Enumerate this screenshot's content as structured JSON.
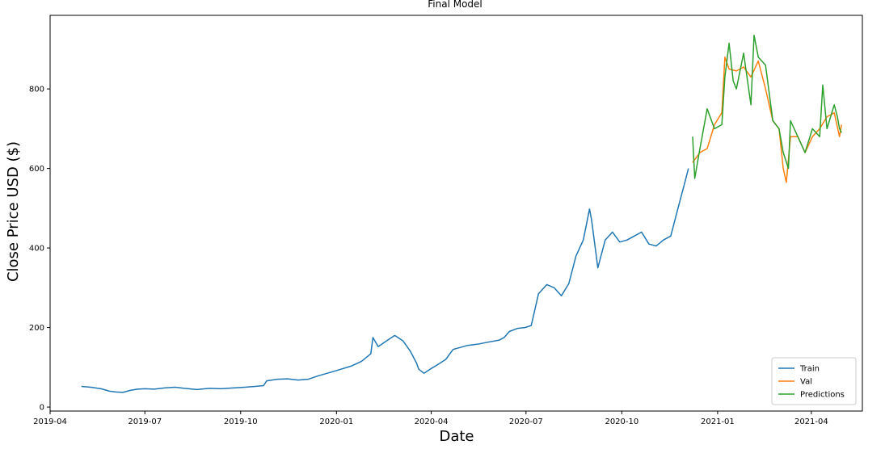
{
  "chart_data": {
    "type": "line",
    "title": "Final Model",
    "xlabel": "Date",
    "ylabel": "Close Price USD ($)",
    "xlim": [
      "2019-04-01",
      "2021-05-20"
    ],
    "ylim": [
      -10,
      985
    ],
    "x_ticks": [
      "2019-04",
      "2019-07",
      "2019-10",
      "2020-01",
      "2020-04",
      "2020-07",
      "2020-10",
      "2021-01",
      "2021-04"
    ],
    "y_ticks": [
      0,
      200,
      400,
      600,
      800
    ],
    "grid": false,
    "legend_position": "lower-right",
    "colors": {
      "Train": "#1f77b4",
      "Val": "#ff7f0e",
      "Predictions": "#2ca02c"
    },
    "series": [
      {
        "name": "Train",
        "x": [
          "2019-05-01",
          "2019-05-10",
          "2019-05-20",
          "2019-05-28",
          "2019-06-03",
          "2019-06-10",
          "2019-06-17",
          "2019-06-24",
          "2019-07-01",
          "2019-07-10",
          "2019-07-20",
          "2019-07-30",
          "2019-08-08",
          "2019-08-20",
          "2019-09-01",
          "2019-09-12",
          "2019-09-24",
          "2019-10-05",
          "2019-10-15",
          "2019-10-23",
          "2019-10-26",
          "2019-11-05",
          "2019-11-15",
          "2019-11-25",
          "2019-12-05",
          "2019-12-15",
          "2019-12-26",
          "2020-01-05",
          "2020-01-15",
          "2020-01-25",
          "2020-02-03",
          "2020-02-05",
          "2020-02-10",
          "2020-02-19",
          "2020-02-26",
          "2020-03-05",
          "2020-03-12",
          "2020-03-18",
          "2020-03-20",
          "2020-03-25",
          "2020-04-01",
          "2020-04-08",
          "2020-04-15",
          "2020-04-22",
          "2020-04-29",
          "2020-05-06",
          "2020-05-15",
          "2020-05-25",
          "2020-06-05",
          "2020-06-10",
          "2020-06-15",
          "2020-06-23",
          "2020-06-30",
          "2020-07-06",
          "2020-07-13",
          "2020-07-21",
          "2020-07-28",
          "2020-08-04",
          "2020-08-11",
          "2020-08-18",
          "2020-08-25",
          "2020-08-31",
          "2020-09-02",
          "2020-09-08",
          "2020-09-15",
          "2020-09-22",
          "2020-09-29",
          "2020-10-06",
          "2020-10-13",
          "2020-10-20",
          "2020-10-27",
          "2020-11-03",
          "2020-11-10",
          "2020-11-17",
          "2020-11-24",
          "2020-11-30",
          "2020-12-04"
        ],
        "values": [
          52,
          50,
          46,
          40,
          38,
          37,
          42,
          45,
          46,
          45,
          48,
          50,
          47,
          44,
          47,
          46,
          48,
          50,
          52,
          54,
          66,
          70,
          71,
          68,
          70,
          79,
          87,
          95,
          103,
          115,
          134,
          175,
          152,
          168,
          180,
          166,
          140,
          110,
          95,
          85,
          97,
          108,
          120,
          145,
          150,
          155,
          158,
          163,
          168,
          175,
          190,
          198,
          200,
          205,
          285,
          308,
          300,
          280,
          310,
          380,
          420,
          498,
          470,
          350,
          420,
          440,
          415,
          420,
          430,
          440,
          410,
          405,
          420,
          430,
          500,
          560,
          600
        ]
      },
      {
        "name": "Val",
        "x": [
          "2020-12-08",
          "2020-12-15",
          "2020-12-22",
          "2020-12-29",
          "2021-01-05",
          "2021-01-08",
          "2021-01-12",
          "2021-01-19",
          "2021-01-26",
          "2021-02-02",
          "2021-02-09",
          "2021-02-16",
          "2021-02-23",
          "2021-03-01",
          "2021-03-05",
          "2021-03-08",
          "2021-03-12",
          "2021-03-19",
          "2021-03-26",
          "2021-04-02",
          "2021-04-09",
          "2021-04-16",
          "2021-04-23",
          "2021-04-28",
          "2021-04-30"
        ],
        "values": [
          615,
          640,
          650,
          710,
          740,
          880,
          850,
          845,
          855,
          830,
          870,
          800,
          720,
          700,
          600,
          565,
          680,
          680,
          640,
          680,
          700,
          730,
          740,
          680,
          710
        ]
      },
      {
        "name": "Predictions",
        "x": [
          "2020-12-08",
          "2020-12-10",
          "2020-12-15",
          "2020-12-22",
          "2020-12-29",
          "2021-01-05",
          "2021-01-08",
          "2021-01-12",
          "2021-01-16",
          "2021-01-19",
          "2021-01-26",
          "2021-02-02",
          "2021-02-05",
          "2021-02-09",
          "2021-02-16",
          "2021-02-23",
          "2021-03-01",
          "2021-03-05",
          "2021-03-10",
          "2021-03-12",
          "2021-03-19",
          "2021-03-26",
          "2021-04-02",
          "2021-04-09",
          "2021-04-12",
          "2021-04-16",
          "2021-04-23",
          "2021-04-26",
          "2021-04-28",
          "2021-04-30"
        ],
        "values": [
          680,
          575,
          650,
          750,
          700,
          710,
          830,
          915,
          820,
          800,
          890,
          760,
          935,
          880,
          860,
          720,
          700,
          640,
          600,
          720,
          680,
          640,
          700,
          680,
          810,
          700,
          760,
          730,
          700,
          690
        ]
      }
    ]
  }
}
